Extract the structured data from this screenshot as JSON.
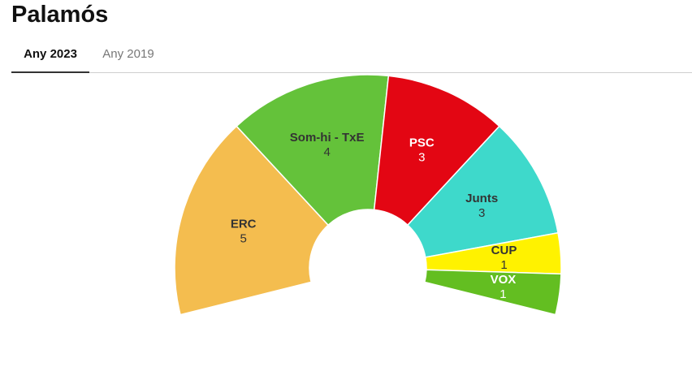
{
  "title": "Palamós",
  "tabs": [
    {
      "label": "Any 2023",
      "active": true
    },
    {
      "label": "Any 2019",
      "active": false
    }
  ],
  "chart_data": {
    "type": "pie",
    "series": [
      {
        "name": "ERC",
        "value": 5,
        "color": "#F4BD4F",
        "text_color": "#333333"
      },
      {
        "name": "Som-hi - TxE",
        "value": 4,
        "color": "#64C23A",
        "text_color": "#333333"
      },
      {
        "name": "PSC",
        "value": 3,
        "color": "#E30613",
        "text_color": "#ffffff"
      },
      {
        "name": "Junts",
        "value": 3,
        "color": "#3ED9CB",
        "text_color": "#333333"
      },
      {
        "name": "CUP",
        "value": 1,
        "color": "#FFF200",
        "text_color": "#333333"
      },
      {
        "name": "VOX",
        "value": 1,
        "color": "#63BE21",
        "text_color": "#ffffff"
      }
    ]
  }
}
